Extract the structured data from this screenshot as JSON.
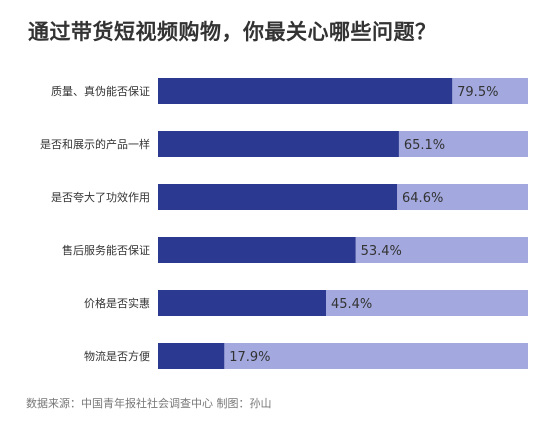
{
  "title": "通过带货短视频购物，你最关心哪些问题？",
  "footer": "数据来源：中国青年报社社会调查中心  制图：孙山",
  "colors": {
    "value": "#2b3990",
    "remainder": "#a3a9de",
    "label": "#333333",
    "title": "#333333"
  },
  "chart_data": {
    "type": "bar",
    "orientation": "horizontal",
    "stacked_to_100": true,
    "categories": [
      "质量、真伪能否保证",
      "是否和展示的产品一样",
      "是否夸大了功效作用",
      "售后服务能否保证",
      "价格是否实惠",
      "物流是否方便"
    ],
    "values": [
      79.5,
      65.1,
      64.6,
      53.4,
      45.4,
      17.9
    ],
    "value_labels": [
      "79.5%",
      "65.1%",
      "64.6%",
      "53.4%",
      "45.4%",
      "17.9%"
    ],
    "xlim": [
      0,
      100
    ],
    "grid": false,
    "legend": false
  }
}
